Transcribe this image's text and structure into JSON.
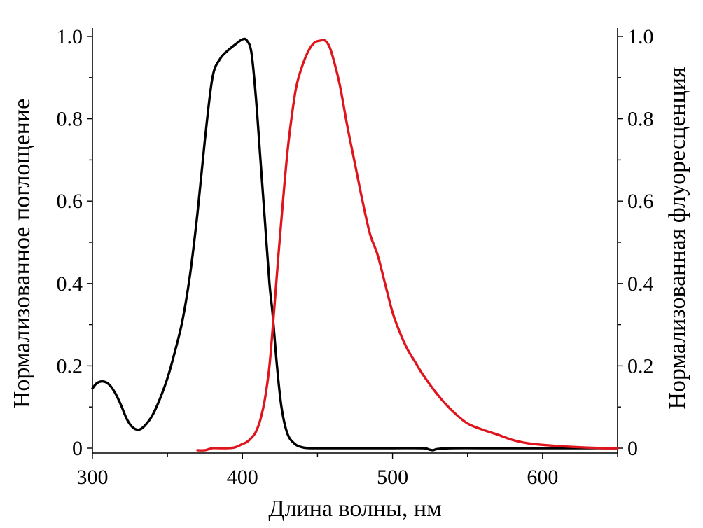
{
  "chart_data": {
    "type": "line",
    "xlabel": "Длина волны, нм",
    "ylabel_left": "Нормализованное поглощение",
    "ylabel_right": "Нормализованная флуоресценция",
    "xlim": [
      300,
      650
    ],
    "ylim": [
      0,
      1.0
    ],
    "x_ticks": [
      300,
      400,
      500,
      600
    ],
    "x_minor_ticks": [
      350,
      450,
      550,
      650
    ],
    "y_ticks": [
      {
        "value": 0,
        "label": "0"
      },
      {
        "value": 0.2,
        "label": "0.2"
      },
      {
        "value": 0.4,
        "label": "0.4"
      },
      {
        "value": 0.6,
        "label": "0.6"
      },
      {
        "value": 0.8,
        "label": "0.8"
      },
      {
        "value": 1.0,
        "label": "1.0"
      }
    ],
    "y_minor_ticks": [
      0.1,
      0.3,
      0.5,
      0.7,
      0.9
    ],
    "grid": false,
    "series": [
      {
        "color": "#000000",
        "x": [
          300,
          303,
          307,
          311,
          315,
          319,
          323,
          327,
          331,
          335,
          340,
          345,
          350,
          355,
          360,
          365,
          370,
          375,
          380,
          385,
          390,
          395,
          400,
          403,
          406,
          409,
          412,
          415,
          418,
          420,
          423,
          426,
          430,
          435,
          440,
          445,
          450,
          460,
          480,
          500,
          520,
          524,
          527,
          530,
          540,
          560,
          600,
          650
        ],
        "y": [
          0.145,
          0.158,
          0.162,
          0.155,
          0.135,
          0.105,
          0.07,
          0.05,
          0.045,
          0.055,
          0.08,
          0.12,
          0.17,
          0.235,
          0.31,
          0.42,
          0.57,
          0.75,
          0.9,
          0.945,
          0.965,
          0.98,
          0.993,
          0.99,
          0.96,
          0.85,
          0.7,
          0.55,
          0.4,
          0.33,
          0.2,
          0.1,
          0.035,
          0.01,
          0.002,
          0.0,
          0.0,
          0.0,
          0.0,
          0.0,
          0.0,
          -0.003,
          -0.005,
          -0.002,
          0.0,
          0.0,
          0.0,
          0.0
        ]
      },
      {
        "color": "#e0141c",
        "x": [
          370,
          375,
          380,
          385,
          390,
          395,
          400,
          403,
          406,
          409,
          412,
          415,
          418,
          421,
          424,
          427,
          430,
          433,
          436,
          440,
          444,
          448,
          452,
          455,
          458,
          461,
          465,
          470,
          475,
          480,
          485,
          490,
          495,
          500,
          505,
          510,
          515,
          520,
          530,
          540,
          550,
          560,
          570,
          580,
          590,
          600,
          620,
          640,
          650
        ],
        "y": [
          -0.005,
          -0.005,
          0.0,
          0.0,
          0.0,
          0.002,
          0.01,
          0.015,
          0.025,
          0.04,
          0.07,
          0.12,
          0.2,
          0.33,
          0.47,
          0.6,
          0.72,
          0.81,
          0.88,
          0.93,
          0.965,
          0.985,
          0.99,
          0.99,
          0.975,
          0.94,
          0.88,
          0.78,
          0.69,
          0.6,
          0.52,
          0.47,
          0.4,
          0.33,
          0.28,
          0.24,
          0.21,
          0.18,
          0.13,
          0.09,
          0.06,
          0.045,
          0.033,
          0.02,
          0.012,
          0.008,
          0.003,
          0.0,
          0.0
        ]
      }
    ]
  }
}
